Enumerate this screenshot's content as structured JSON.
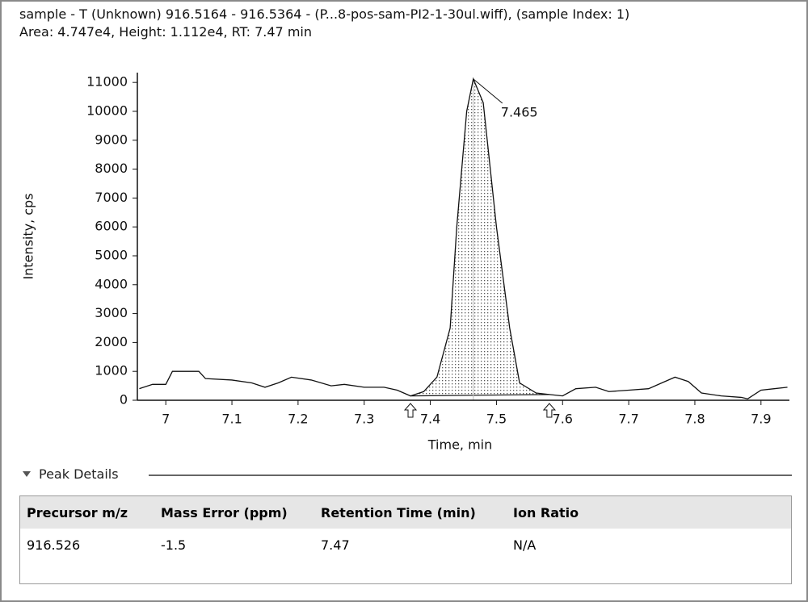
{
  "header": {
    "line1": "sample - T (Unknown) 916.5164 - 916.5364 - (P...8-pos-sam-PI2-1-30ul.wiff), (sample Index: 1)",
    "line2": "Area: 4.747e4, Height: 1.112e4, RT: 7.47 min"
  },
  "chart_data": {
    "type": "line",
    "x_label": "Time, min",
    "y_label": "Intensity, cps",
    "x": [
      6.96,
      6.98,
      7.0,
      7.01,
      7.05,
      7.06,
      7.1,
      7.13,
      7.15,
      7.17,
      7.19,
      7.22,
      7.25,
      7.27,
      7.3,
      7.33,
      7.35,
      7.37,
      7.39,
      7.41,
      7.43,
      7.44,
      7.455,
      7.465,
      7.48,
      7.5,
      7.52,
      7.535,
      7.56,
      7.58,
      7.6,
      7.62,
      7.65,
      7.67,
      7.7,
      7.73,
      7.75,
      7.77,
      7.79,
      7.81,
      7.84,
      7.87,
      7.88,
      7.9,
      7.92,
      7.94
    ],
    "series": [
      {
        "color": "#111111",
        "values": [
          400,
          550,
          550,
          1000,
          1000,
          750,
          700,
          600,
          450,
          600,
          800,
          700,
          500,
          550,
          450,
          450,
          350,
          150,
          300,
          800,
          2500,
          6000,
          10000,
          11120,
          10300,
          6000,
          2500,
          600,
          250,
          200,
          150,
          400,
          450,
          300,
          350,
          400,
          600,
          800,
          650,
          250,
          150,
          100,
          50,
          350,
          400,
          450
        ]
      }
    ],
    "xlim": [
      6.957,
      7.943
    ],
    "xticks": [
      7.0,
      7.1,
      7.2,
      7.3,
      7.4,
      7.5,
      7.6,
      7.7,
      7.8,
      7.9
    ],
    "ylim": [
      0,
      11340
    ],
    "yticks": [
      0,
      1000,
      2000,
      3000,
      4000,
      5000,
      6000,
      7000,
      8000,
      9000,
      10000,
      11000
    ],
    "peak_start": 7.37,
    "peak_end": 7.58,
    "annotation": {
      "text": "7.465",
      "x": 7.465,
      "y": 11120
    }
  },
  "peak_details": {
    "title": "Peak Details",
    "columns": [
      "Precursor m/z",
      "Mass Error (ppm)",
      "Retention Time (min)",
      "Ion Ratio"
    ],
    "rows": [
      [
        "916.526",
        "-1.5",
        "7.47",
        "N/A"
      ]
    ]
  }
}
